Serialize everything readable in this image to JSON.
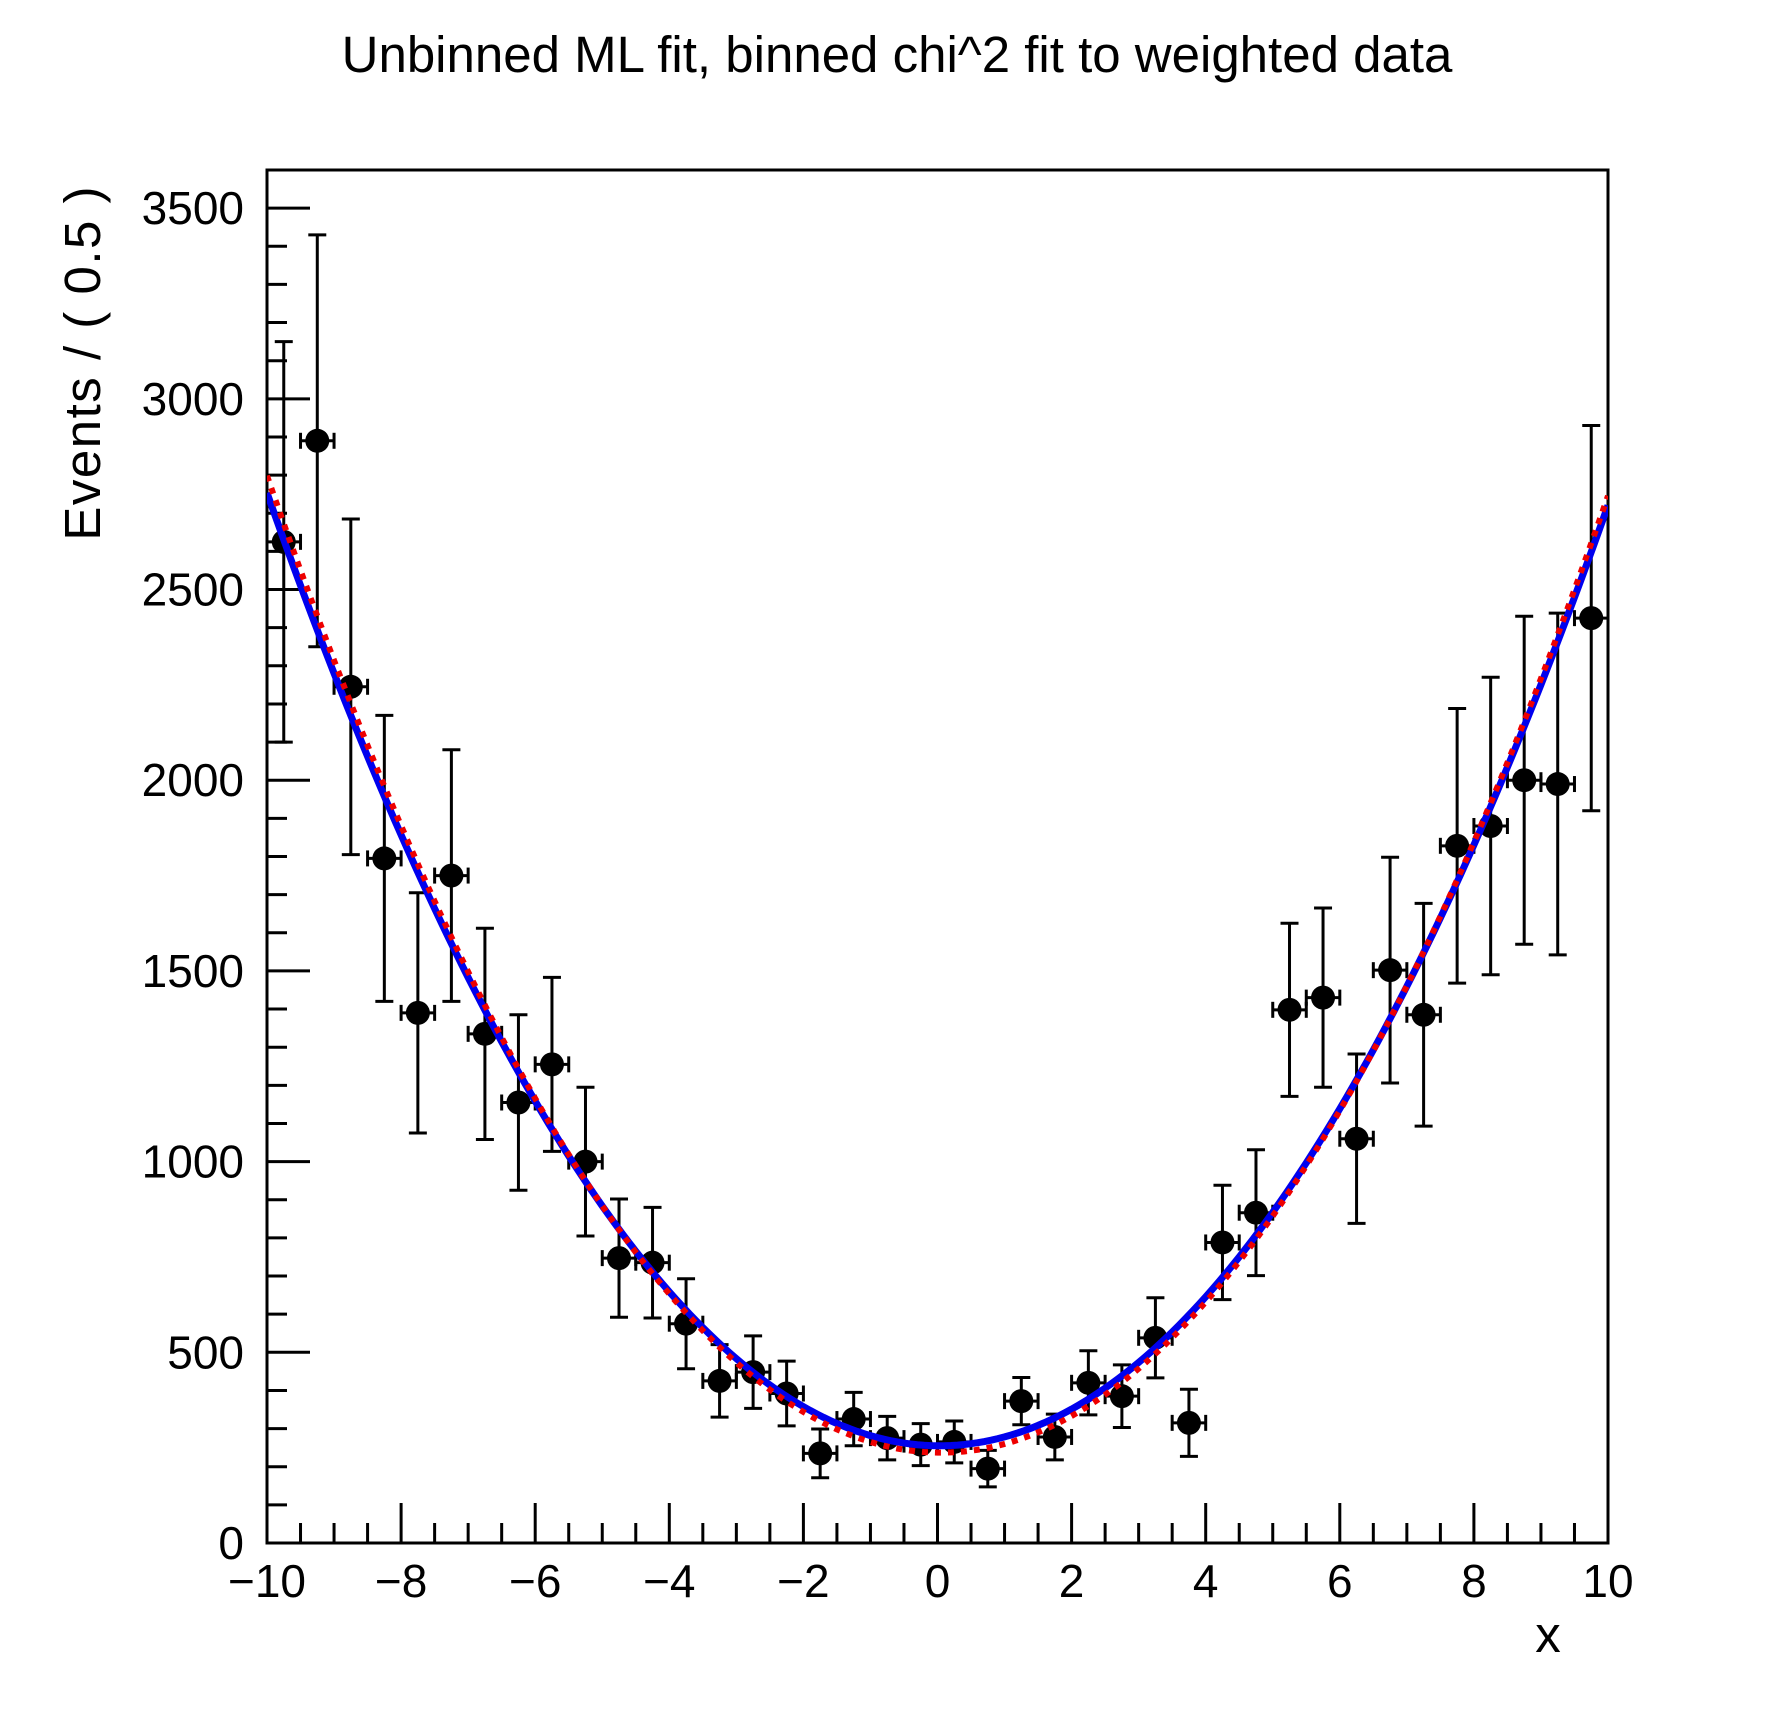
{
  "title": "Unbinned ML fit, binned chi^2 fit to weighted data",
  "axes": {
    "x_title": "x",
    "y_title": "Events / ( 0.5 )",
    "x_min": -10,
    "x_max": 10,
    "y_min": 0,
    "y_max": 3600,
    "x_major_step": 2,
    "x_minor_step": 0.5,
    "y_major_step": 500,
    "y_minor_step": 100,
    "x_tick_labels": [
      "−10",
      "−8",
      "−6",
      "−4",
      "−2",
      "0",
      "2",
      "4",
      "6",
      "8",
      "10"
    ],
    "x_tick_values": [
      -10,
      -8,
      -6,
      -4,
      -2,
      0,
      2,
      4,
      6,
      8,
      10
    ],
    "y_tick_labels": [
      "0",
      "500",
      "1000",
      "1500",
      "2000",
      "2500",
      "3000",
      "3500"
    ],
    "y_tick_values": [
      0,
      500,
      1000,
      1500,
      2000,
      2500,
      3000,
      3500
    ]
  },
  "chart_data": {
    "type": "scatter",
    "description": "weighted data points with x and y error bars plus two parabolic fit curves",
    "bin_width": 0.5,
    "x": [
      -9.75,
      -9.25,
      -8.75,
      -8.25,
      -7.75,
      -7.25,
      -6.75,
      -6.25,
      -5.75,
      -5.25,
      -4.75,
      -4.25,
      -3.75,
      -3.25,
      -2.75,
      -2.25,
      -1.75,
      -1.25,
      -0.75,
      -0.25,
      0.25,
      0.75,
      1.25,
      1.75,
      2.25,
      2.75,
      3.25,
      3.75,
      4.25,
      4.75,
      5.25,
      5.75,
      6.25,
      6.75,
      7.25,
      7.75,
      8.25,
      8.75,
      9.25,
      9.75
    ],
    "y": [
      2625,
      2890,
      2245,
      1795,
      1390,
      1750,
      1335,
      1155,
      1255,
      1000,
      747,
      735,
      575,
      425,
      448,
      392,
      235,
      325,
      275,
      258,
      265,
      195,
      372,
      278,
      420,
      385,
      538,
      315,
      788,
      866,
      1398,
      1430,
      1060,
      1502,
      1385,
      1828,
      1880,
      2000,
      1990,
      2425
    ],
    "yerr": [
      525,
      540,
      440,
      375,
      315,
      330,
      277,
      230,
      228,
      195,
      155,
      145,
      118,
      95,
      95,
      85,
      64,
      70,
      57,
      55,
      55,
      48,
      62,
      60,
      84,
      82,
      105,
      88,
      150,
      165,
      227,
      235,
      222,
      296,
      292,
      360,
      390,
      430,
      448,
      505
    ],
    "xerr": 0.25,
    "series": [
      {
        "name": "unbinned ML fit",
        "type": "quadratic",
        "style": "solid",
        "color": "#0000ee",
        "p0": 255,
        "p1": -1.65,
        "p2": 24.82
      },
      {
        "name": "binned chi^2 fit",
        "type": "quadratic",
        "style": "dotted",
        "color": "#ee0000",
        "p0": 237,
        "p1": -2.65,
        "p2": 25.35
      }
    ],
    "marker": {
      "shape": "filled-circle",
      "color": "#000000"
    }
  }
}
